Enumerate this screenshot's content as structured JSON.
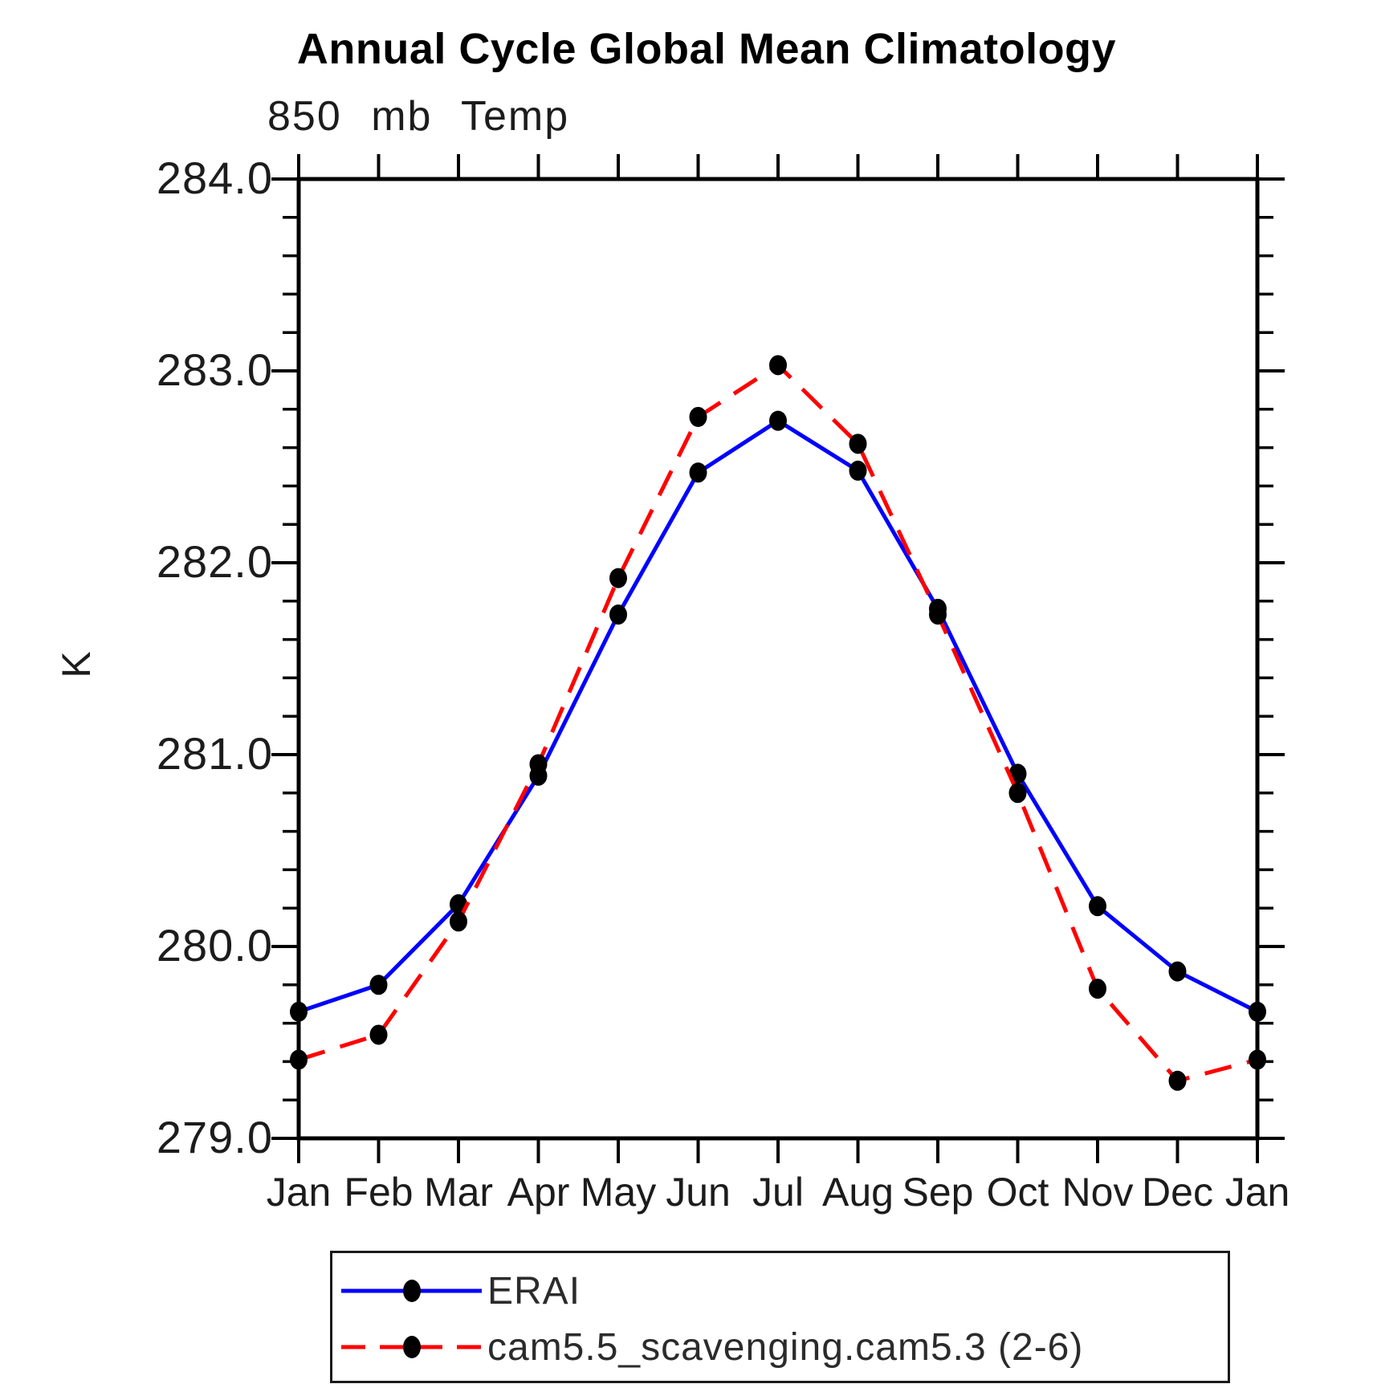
{
  "title": "Annual Cycle Global Mean Climatology",
  "chart_data": {
    "type": "line",
    "subtitle": "850 mb Temp",
    "ylabel": "K",
    "x_categories": [
      "Jan",
      "Feb",
      "Mar",
      "Apr",
      "May",
      "Jun",
      "Jul",
      "Aug",
      "Sep",
      "Oct",
      "Nov",
      "Dec",
      "Jan"
    ],
    "ylim": [
      279.0,
      284.0
    ],
    "yticks": [
      279.0,
      280.0,
      281.0,
      282.0,
      283.0,
      284.0
    ],
    "ytick_labels": [
      "279.0",
      "280.0",
      "281.0",
      "282.0",
      "283.0",
      "284.0"
    ],
    "ytick_minor_step": 0.2,
    "grid": false,
    "legend_position": "bottom",
    "axis_color": "#000000",
    "tick_label_color": "#1c1c1c",
    "background_color": "#ffffff",
    "series": [
      {
        "name": "ERAI",
        "color": "#0000ff",
        "style": "solid",
        "marker": "filled-circle",
        "marker_color": "#000000",
        "values": [
          279.66,
          279.8,
          280.22,
          280.89,
          281.73,
          282.47,
          282.74,
          282.48,
          281.76,
          280.9,
          280.21,
          279.87,
          279.66
        ]
      },
      {
        "name": "cam5.5_scavenging.cam5.3 (2-6)",
        "color": "#ff0000",
        "style": "dashed",
        "marker": "filled-circle",
        "marker_color": "#000000",
        "values": [
          279.41,
          279.54,
          280.13,
          280.95,
          281.92,
          282.76,
          283.03,
          282.62,
          281.73,
          280.8,
          279.78,
          279.3,
          279.41
        ]
      }
    ]
  }
}
